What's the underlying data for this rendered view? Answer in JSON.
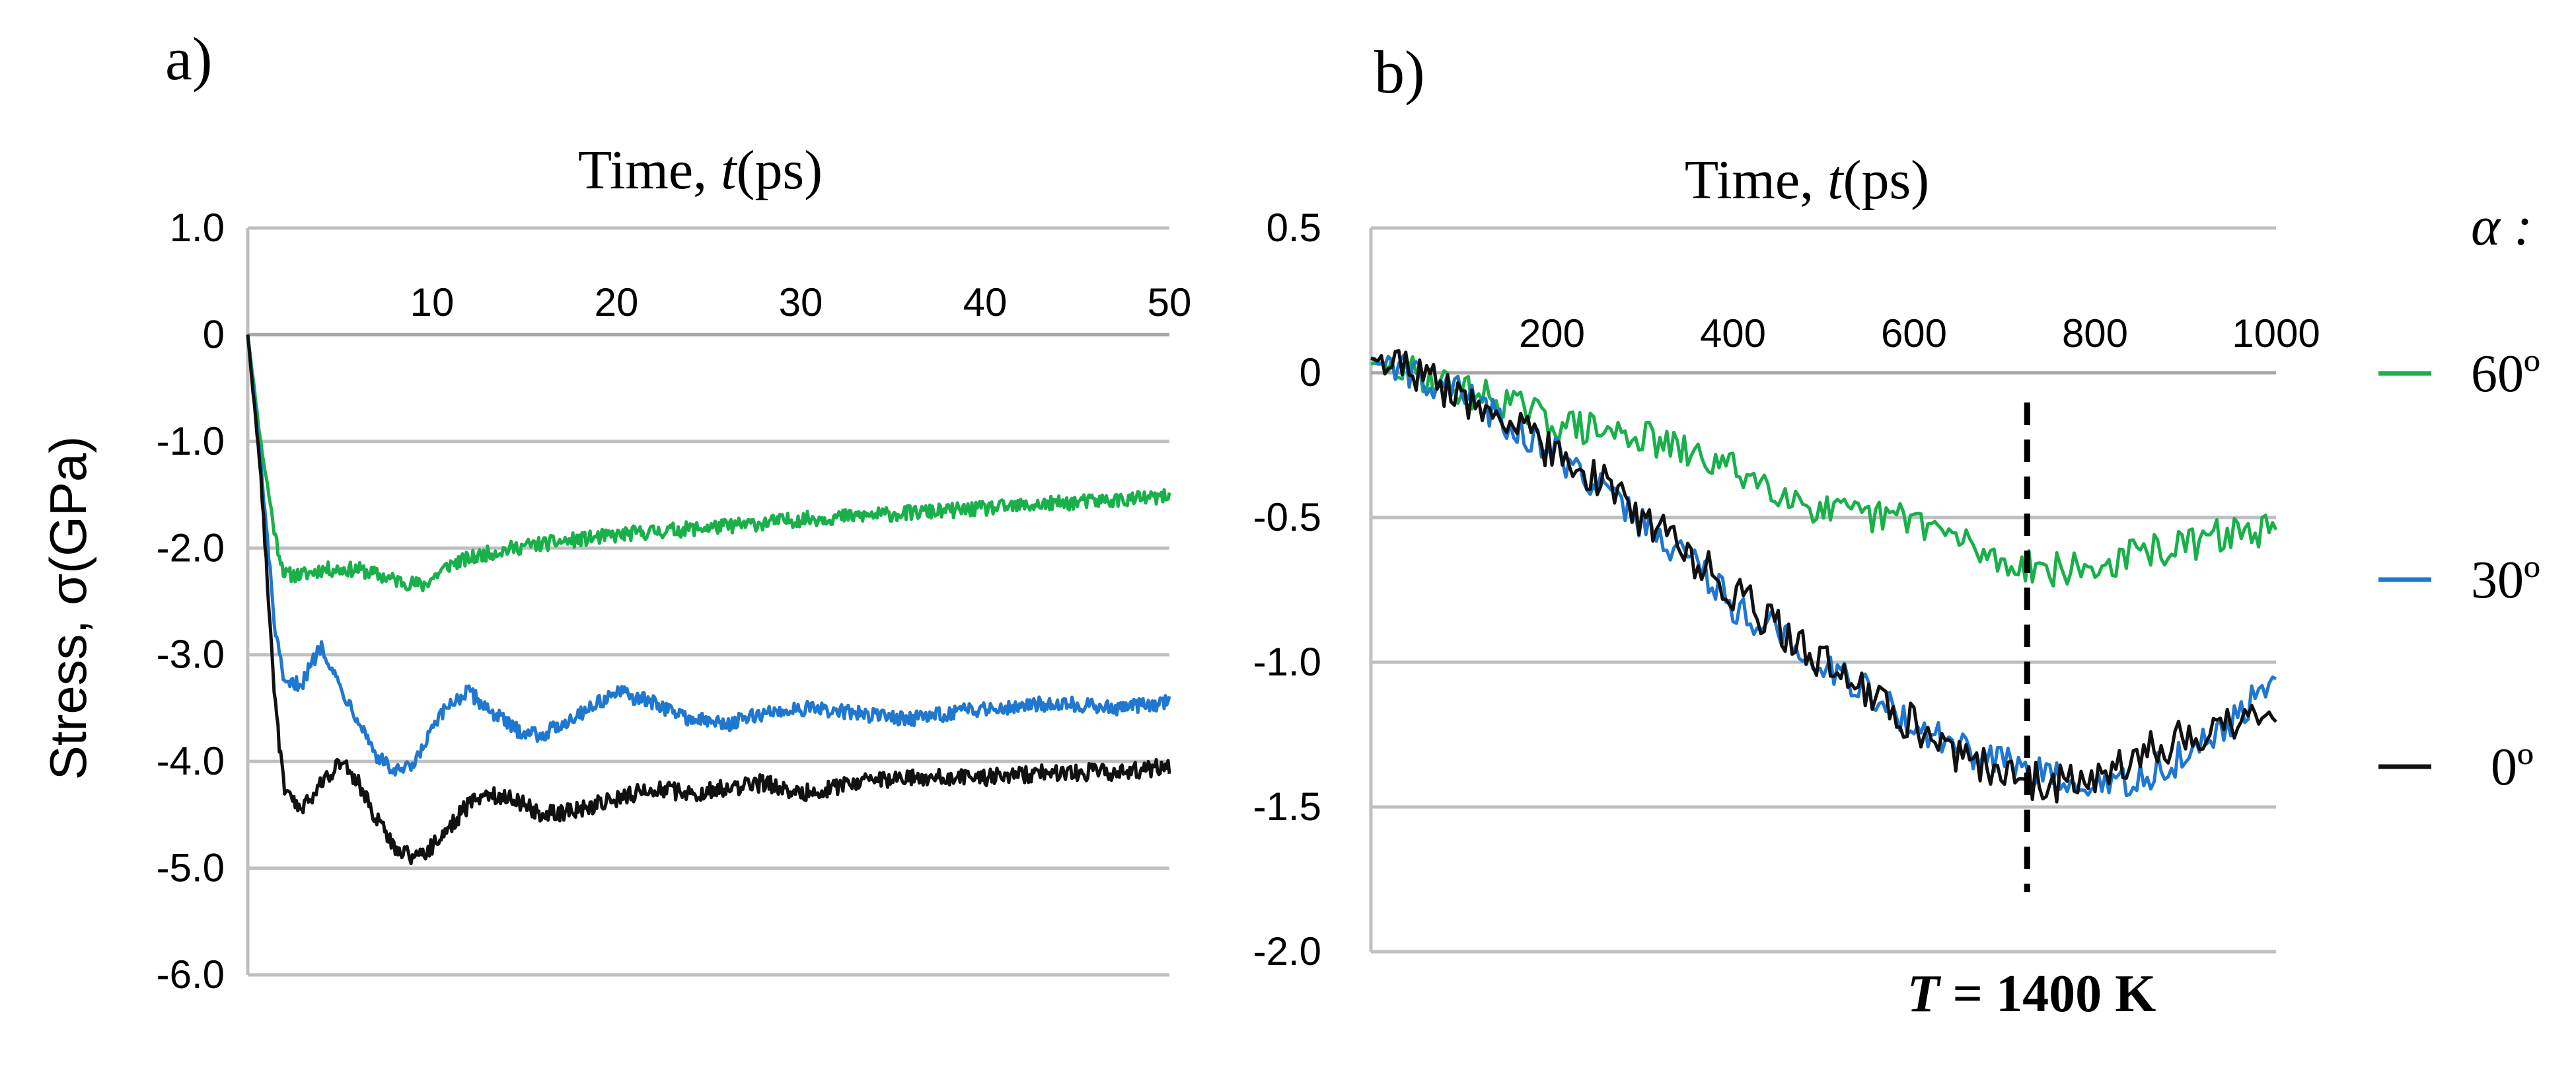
{
  "chart_data": [
    {
      "panel": "a)",
      "type": "line",
      "title": "",
      "xlabel_prefix": "Time, ",
      "xlabel_var": "t",
      "xlabel_unit": "(ps)",
      "ylabel": "Stress, σ(GPa)",
      "xlim": [
        0,
        50
      ],
      "ylim": [
        -6,
        1
      ],
      "x_ticks": [
        "10",
        "20",
        "30",
        "40",
        "50"
      ],
      "x_tick_values": [
        10,
        20,
        30,
        40,
        50
      ],
      "y_ticks": [
        "1.0",
        "0",
        "-1.0",
        "-2.0",
        "-3.0",
        "-4.0",
        "-5.0",
        "-6.0"
      ],
      "y_tick_values": [
        1,
        0,
        -1,
        -2,
        -3,
        -4,
        -5,
        -6
      ],
      "grid": true,
      "x_axis_position": "top",
      "series": [
        {
          "name": "60º",
          "color": "#19b04b",
          "x": [
            0,
            0.7,
            1.5,
            2,
            3,
            4,
            6,
            8,
            9.5,
            11,
            13,
            15,
            18,
            21,
            24,
            27,
            30,
            33,
            36,
            40,
            44,
            47,
            50
          ],
          "y": [
            0,
            -1.0,
            -1.9,
            -2.25,
            -2.25,
            -2.2,
            -2.2,
            -2.3,
            -2.35,
            -2.15,
            -2.05,
            -1.98,
            -1.92,
            -1.86,
            -1.82,
            -1.78,
            -1.73,
            -1.7,
            -1.67,
            -1.63,
            -1.58,
            -1.55,
            -1.52
          ],
          "noise": 0.07
        },
        {
          "name": "30º",
          "color": "#1f77d0",
          "x": [
            0,
            0.7,
            1.5,
            2,
            3,
            4,
            5,
            6,
            7,
            8,
            9,
            10,
            11,
            12,
            13,
            14.5,
            16,
            18,
            20,
            22,
            24,
            26,
            28,
            30,
            33,
            36,
            40,
            44,
            47,
            50
          ],
          "y": [
            0,
            -1.2,
            -2.8,
            -3.3,
            -3.25,
            -2.9,
            -3.3,
            -3.6,
            -3.95,
            -4.1,
            -4.05,
            -3.7,
            -3.45,
            -3.35,
            -3.5,
            -3.7,
            -3.75,
            -3.55,
            -3.35,
            -3.45,
            -3.6,
            -3.65,
            -3.55,
            -3.5,
            -3.55,
            -3.6,
            -3.5,
            -3.45,
            -3.5,
            -3.45
          ],
          "noise": 0.07
        },
        {
          "name": "0º",
          "color": "#111111",
          "x": [
            0,
            0.7,
            1.5,
            2,
            3,
            4,
            5,
            6,
            7,
            8,
            9,
            10,
            11,
            12,
            13,
            14.5,
            16,
            18,
            20,
            22,
            24,
            26,
            28,
            30,
            33,
            36,
            40,
            44,
            47,
            50
          ],
          "y": [
            0,
            -1.3,
            -3.5,
            -4.3,
            -4.45,
            -4.2,
            -4.0,
            -4.2,
            -4.55,
            -4.8,
            -4.9,
            -4.8,
            -4.6,
            -4.4,
            -4.3,
            -4.35,
            -4.5,
            -4.45,
            -4.35,
            -4.25,
            -4.3,
            -4.25,
            -4.2,
            -4.3,
            -4.2,
            -4.15,
            -4.15,
            -4.1,
            -4.1,
            -4.05
          ],
          "noise": 0.08
        }
      ]
    },
    {
      "panel": "b)",
      "type": "line",
      "title": "",
      "xlabel_prefix": "Time, ",
      "xlabel_var": "t",
      "xlabel_unit": "(ps)",
      "ylabel": "",
      "xlim": [
        0,
        1000
      ],
      "ylim": [
        -2,
        0.5
      ],
      "x_ticks": [
        "200",
        "400",
        "600",
        "800",
        "1000"
      ],
      "x_tick_values": [
        200,
        400,
        600,
        800,
        1000
      ],
      "y_ticks": [
        "0.5",
        "0",
        "-0.5",
        "-1.0",
        "-1.5",
        "-2.0"
      ],
      "y_tick_values": [
        0.5,
        0,
        -0.5,
        -1,
        -1.5,
        -2
      ],
      "grid": true,
      "x_axis_position": "top",
      "annotation": {
        "x": 725,
        "label_prefix": "T",
        "label_rest": " = 1400 K",
        "style": "dashed"
      },
      "legend": {
        "title": "α :",
        "position": "right",
        "entries": [
          {
            "label": "60º",
            "color": "#19b04b"
          },
          {
            "label": "30º",
            "color": "#1f77d0"
          },
          {
            "label": "0º",
            "color": "#111111"
          }
        ]
      },
      "series": [
        {
          "name": "60º",
          "color": "#19b04b",
          "x": [
            0,
            50,
            100,
            150,
            200,
            250,
            300,
            350,
            400,
            450,
            500,
            550,
            600,
            650,
            700,
            725,
            750,
            800,
            850,
            900,
            950,
            1000
          ],
          "y": [
            0.03,
            0.0,
            -0.06,
            -0.1,
            -0.17,
            -0.2,
            -0.22,
            -0.28,
            -0.33,
            -0.4,
            -0.48,
            -0.5,
            -0.5,
            -0.58,
            -0.66,
            -0.66,
            -0.68,
            -0.68,
            -0.62,
            -0.6,
            -0.55,
            -0.55
          ],
          "noise": 0.06
        },
        {
          "name": "30º",
          "color": "#1f77d0",
          "x": [
            0,
            50,
            100,
            150,
            200,
            250,
            300,
            350,
            400,
            450,
            500,
            550,
            600,
            650,
            700,
            750,
            800,
            850,
            900,
            950,
            1000
          ],
          "y": [
            0.05,
            0.0,
            -0.07,
            -0.17,
            -0.27,
            -0.38,
            -0.52,
            -0.63,
            -0.8,
            -0.9,
            -1.0,
            -1.1,
            -1.22,
            -1.3,
            -1.35,
            -1.4,
            -1.45,
            -1.4,
            -1.32,
            -1.22,
            -1.05
          ],
          "noise": 0.06
        },
        {
          "name": "0º",
          "color": "#111111",
          "x": [
            0,
            50,
            100,
            150,
            200,
            250,
            300,
            350,
            400,
            450,
            500,
            550,
            600,
            650,
            700,
            750,
            800,
            850,
            900,
            950,
            1000
          ],
          "y": [
            0.05,
            -0.01,
            -0.08,
            -0.17,
            -0.27,
            -0.36,
            -0.5,
            -0.62,
            -0.76,
            -0.88,
            -1.0,
            -1.1,
            -1.22,
            -1.32,
            -1.38,
            -1.42,
            -1.38,
            -1.32,
            -1.26,
            -1.2,
            -1.18
          ],
          "noise": 0.07
        }
      ]
    }
  ]
}
